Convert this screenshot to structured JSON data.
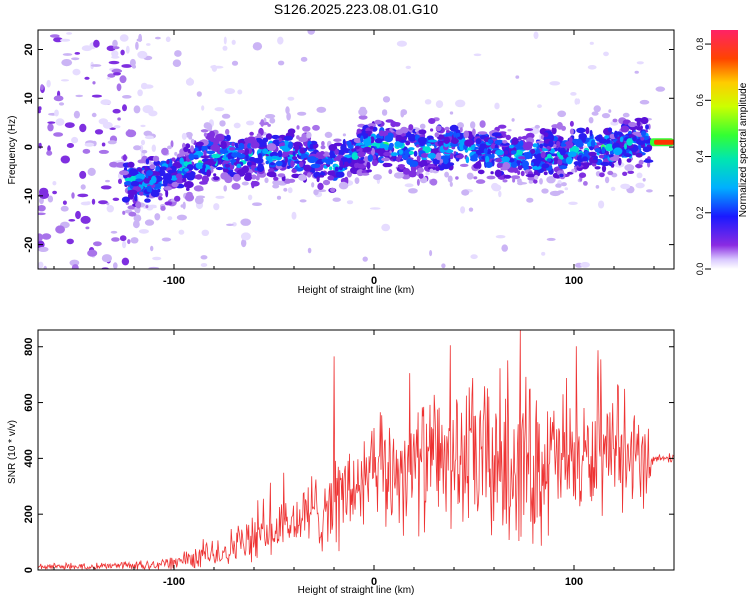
{
  "title": "S126.2025.223.08.01.G10",
  "chart_data": [
    {
      "type": "heatmap",
      "xlabel": "Height of straight line (km)",
      "ylabel": "Frequency (Hz)",
      "xlim": [
        -168,
        150
      ],
      "ylim": [
        -25,
        24
      ],
      "xticks": [
        -100,
        0,
        100
      ],
      "yticks": [
        -20,
        -10,
        0,
        10,
        20
      ],
      "colorbar": {
        "label": "Normalized spectral amplitude",
        "range": [
          0.0,
          0.85
        ],
        "ticks": [
          "0.0",
          "0.2",
          "0.4",
          "0.6",
          "0.8"
        ]
      },
      "ridge": {
        "description_points_x": [
          -110,
          -80,
          -60,
          -40,
          -20,
          0,
          20,
          40,
          60,
          80,
          100,
          120,
          140
        ],
        "frequency_hz": [
          -7,
          -2,
          -2,
          -1,
          -4,
          1,
          -1,
          0,
          -1,
          -2,
          -1,
          0,
          1
        ],
        "peak_x": 140,
        "peak_frequency_hz": 1
      }
    },
    {
      "type": "line",
      "xlabel": "Height of straight line (km)",
      "ylabel": "SNR (10 * v/v)",
      "xlim": [
        -168,
        150
      ],
      "ylim": [
        0,
        860
      ],
      "xticks": [
        -100,
        0,
        100
      ],
      "yticks": [
        0,
        200,
        400,
        600,
        800
      ],
      "series_color": "#ee3333",
      "envelope": {
        "x": [
          -168,
          -120,
          -100,
          -80,
          -60,
          -40,
          -20,
          0,
          20,
          40,
          60,
          80,
          100,
          120,
          138,
          140,
          150
        ],
        "baseline": [
          12,
          15,
          25,
          60,
          110,
          170,
          250,
          330,
          380,
          400,
          390,
          385,
          395,
          390,
          400,
          400,
          400
        ],
        "spread": [
          10,
          15,
          30,
          60,
          80,
          110,
          180,
          200,
          230,
          260,
          320,
          300,
          220,
          180,
          150,
          15,
          15
        ]
      },
      "max_value": 860,
      "max_x": 73
    }
  ]
}
